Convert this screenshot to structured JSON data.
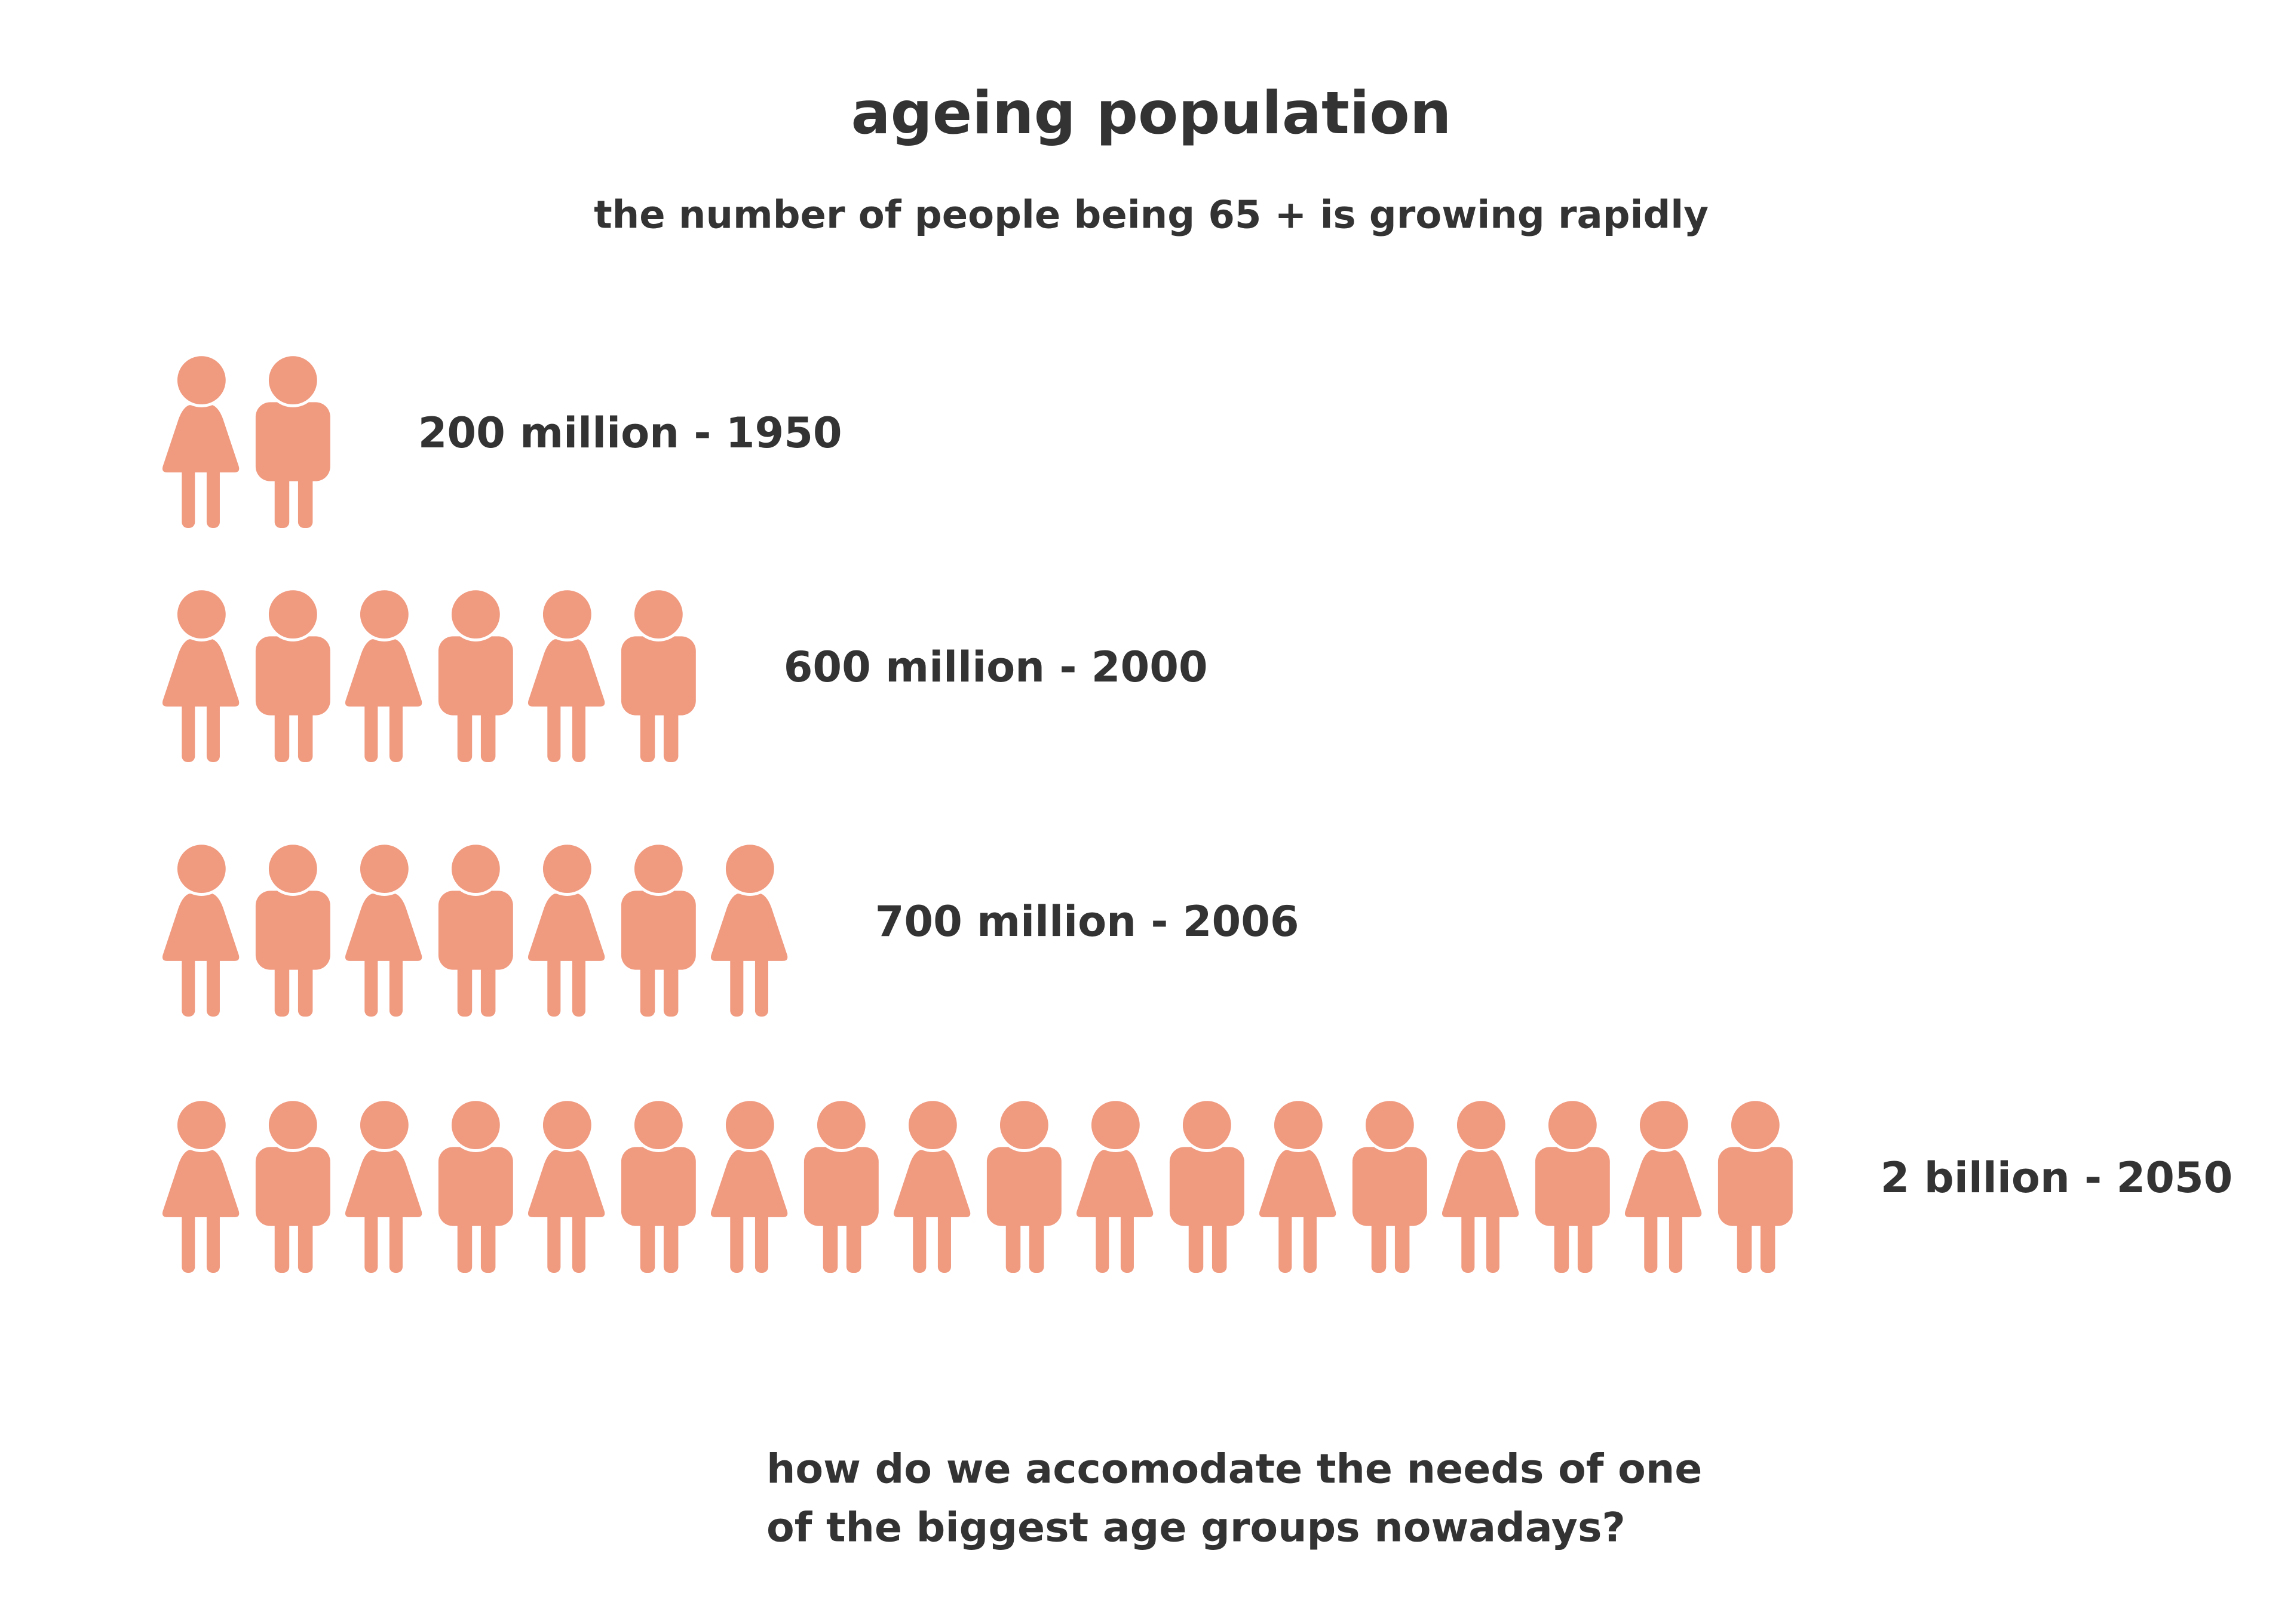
{
  "chart_data": {
    "type": "pictogram",
    "title": "ageing population",
    "subtitle": "the number of people being 65 + is growing rapidly",
    "categories": [
      "200 million - 1950",
      "600 million - 2000",
      "700 million - 2006",
      "2 billion - 2050"
    ],
    "values": [
      2,
      6,
      7,
      18
    ],
    "color": "#f09a80",
    "footnote": [
      "how do we accomodate the needs of one",
      "of the biggest age groups nowadays?"
    ]
  }
}
